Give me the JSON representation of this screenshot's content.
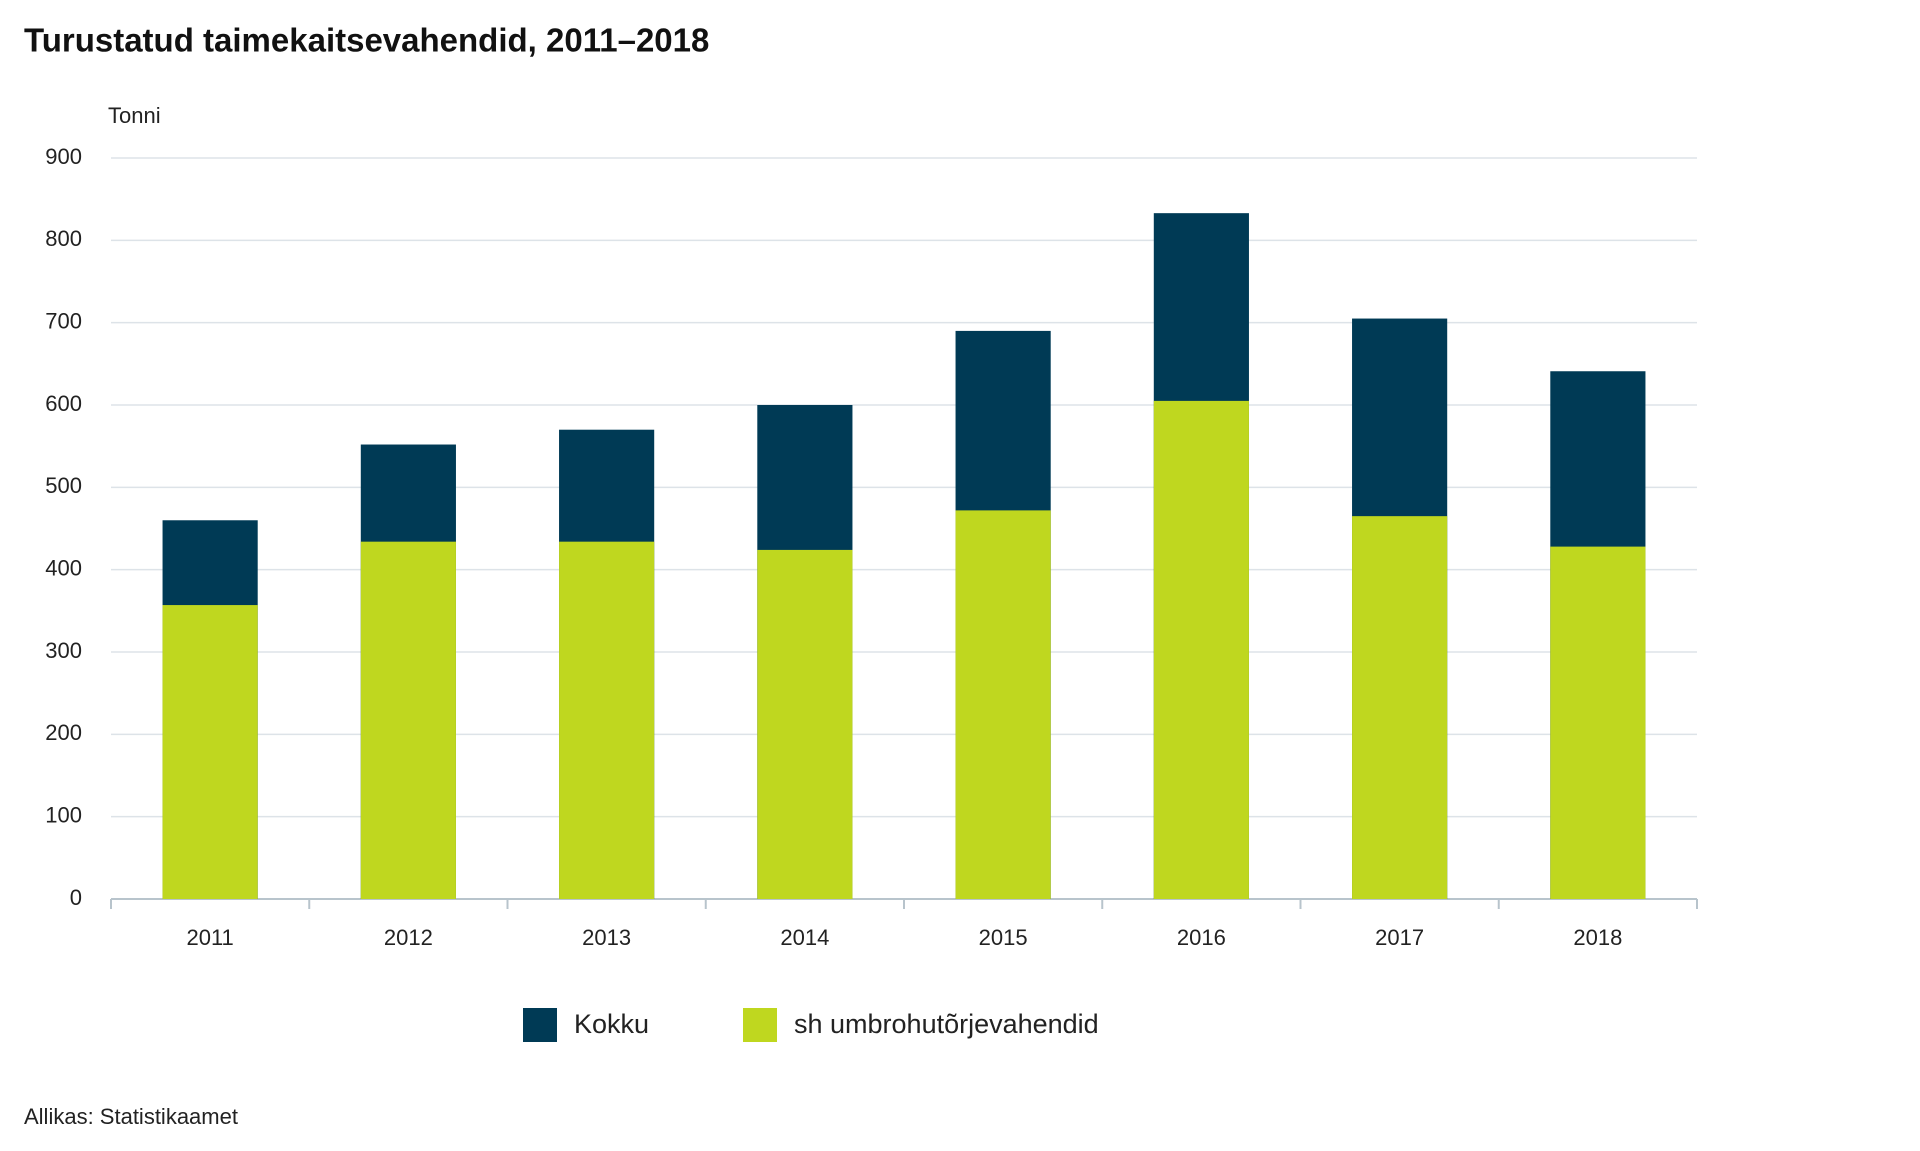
{
  "chart_data": {
    "type": "bar",
    "title": "Turustatud taimekaitsevahendid, 2011–2018",
    "y_label": "Tonni",
    "source": "Allikas: Statistikaamet",
    "categories": [
      "2011",
      "2012",
      "2013",
      "2014",
      "2015",
      "2016",
      "2017",
      "2018"
    ],
    "series": [
      {
        "name": "Kokku",
        "color": "#003a55",
        "values": [
          460,
          552,
          570,
          600,
          690,
          833,
          705,
          641
        ]
      },
      {
        "name": "sh umbrohutõrjevahendid",
        "color": "#bfd71f",
        "values": [
          357,
          434,
          434,
          424,
          472,
          605,
          465,
          428
        ]
      }
    ],
    "ylim": [
      0,
      900
    ],
    "yticks": [
      0,
      100,
      200,
      300,
      400,
      500,
      600,
      700,
      800,
      900
    ],
    "grid": true
  }
}
